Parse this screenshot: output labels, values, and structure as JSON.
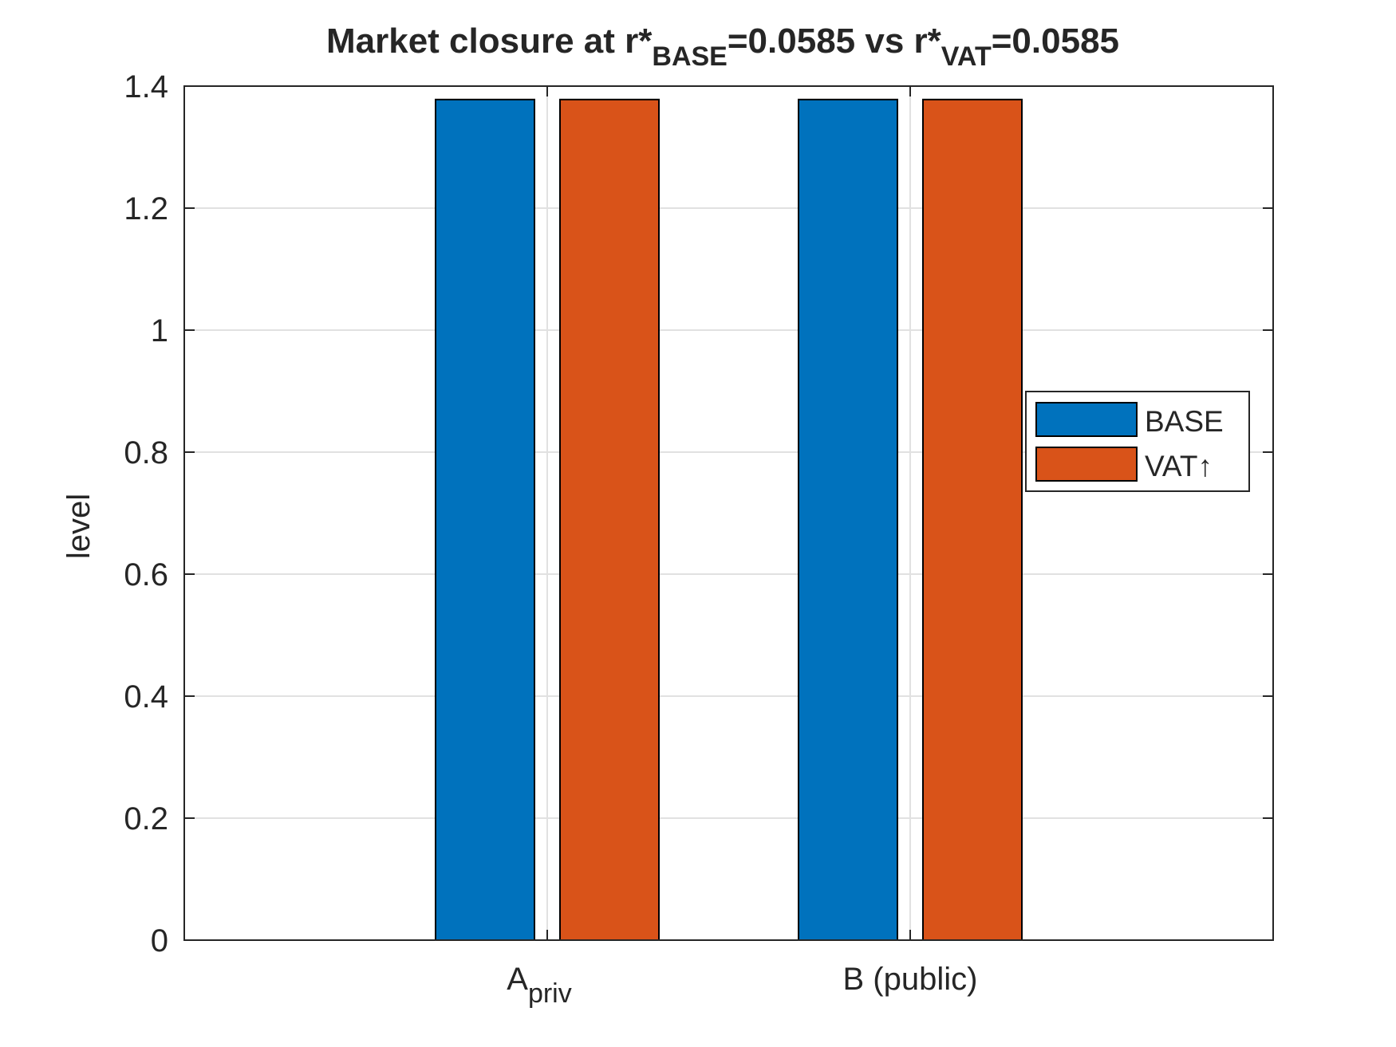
{
  "chart_data": {
    "type": "bar",
    "title": {
      "prefix": "Market closure at r*",
      "sub1": "BASE",
      "mid": "=0.0585 vs r*",
      "sub2": "VAT",
      "suffix": "=0.0585"
    },
    "xlabel": "",
    "ylabel": "level",
    "categories": [
      {
        "main": "A",
        "sub": "priv"
      },
      {
        "main": "B (public)",
        "sub": ""
      }
    ],
    "series": [
      {
        "name": "BASE",
        "color": "#0072BD",
        "values": [
          1.378,
          1.378
        ]
      },
      {
        "name": "VAT↑",
        "color": "#D95319",
        "values": [
          1.378,
          1.378
        ]
      }
    ],
    "ylim": [
      0,
      1.4
    ],
    "yticks": [
      "0",
      "0.2",
      "0.4",
      "0.6",
      "0.8",
      "1",
      "1.2",
      "1.4"
    ],
    "grid": true,
    "legend_position": "right"
  }
}
